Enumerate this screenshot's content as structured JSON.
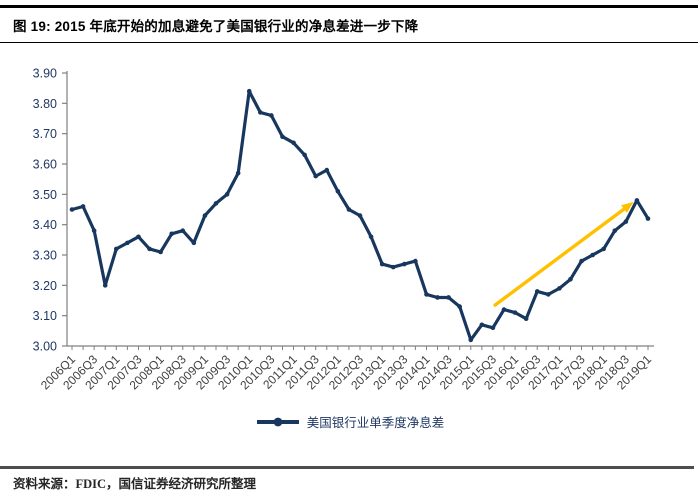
{
  "figure": {
    "title": "图 19: 2015 年底开始的加息避免了美国银行业的净息差进一步下降",
    "legend_label": "美国银行业单季度净息差",
    "source": "资料来源：FDIC，国信证券经济研究所整理"
  },
  "chart_data": {
    "type": "line",
    "title": "",
    "xlabel": "",
    "ylabel": "",
    "grid": false,
    "legend_position": "bottom-center",
    "ylim": [
      3.0,
      3.9
    ],
    "y_ticks": [
      3.0,
      3.1,
      3.2,
      3.3,
      3.4,
      3.5,
      3.6,
      3.7,
      3.8,
      3.9
    ],
    "x_label_every": 2,
    "categories": [
      "2006Q1",
      "2006Q2",
      "2006Q3",
      "2006Q4",
      "2007Q1",
      "2007Q2",
      "2007Q3",
      "2007Q4",
      "2008Q1",
      "2008Q2",
      "2008Q3",
      "2008Q4",
      "2009Q1",
      "2009Q2",
      "2009Q3",
      "2009Q4",
      "2010Q1",
      "2010Q2",
      "2010Q3",
      "2010Q4",
      "2011Q1",
      "2011Q2",
      "2011Q3",
      "2011Q4",
      "2012Q1",
      "2012Q2",
      "2012Q3",
      "2012Q4",
      "2013Q1",
      "2013Q2",
      "2013Q3",
      "2013Q4",
      "2014Q1",
      "2014Q2",
      "2014Q3",
      "2014Q4",
      "2015Q1",
      "2015Q2",
      "2015Q3",
      "2015Q4",
      "2016Q1",
      "2016Q2",
      "2016Q3",
      "2016Q4",
      "2017Q1",
      "2017Q2",
      "2017Q3",
      "2017Q4",
      "2018Q1",
      "2018Q2",
      "2018Q3",
      "2018Q4",
      "2019Q1"
    ],
    "series": [
      {
        "name": "美国银行业单季度净息差",
        "values": [
          3.45,
          3.46,
          3.38,
          3.2,
          3.32,
          3.34,
          3.36,
          3.32,
          3.31,
          3.37,
          3.38,
          3.34,
          3.43,
          3.47,
          3.5,
          3.57,
          3.84,
          3.77,
          3.76,
          3.69,
          3.67,
          3.63,
          3.56,
          3.58,
          3.51,
          3.45,
          3.43,
          3.36,
          3.27,
          3.26,
          3.27,
          3.28,
          3.17,
          3.16,
          3.16,
          3.13,
          3.02,
          3.07,
          3.06,
          3.12,
          3.11,
          3.09,
          3.18,
          3.17,
          3.19,
          3.22,
          3.28,
          3.3,
          3.32,
          3.38,
          3.41,
          3.48,
          3.42
        ]
      }
    ],
    "annotation_arrow": {
      "from_index": 38.2,
      "from_value": 3.135,
      "to_index": 50.7,
      "to_value": 3.475
    },
    "colors": {
      "line": "#17375E",
      "marker": "#17375E",
      "arrow": "#FFC000",
      "axis": "#808080",
      "y_tick_label": "#1F3864",
      "x_tick_label": "#404040"
    }
  }
}
